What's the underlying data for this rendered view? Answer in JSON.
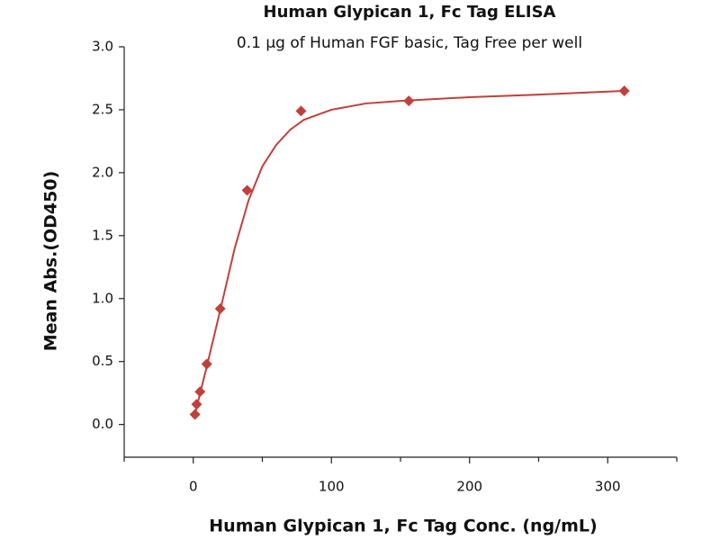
{
  "chart_data": {
    "type": "scatter",
    "title": "Human Glypican 1, Fc Tag ELISA",
    "subtitle": "0.1 μg of Human FGF basic, Tag Free per well",
    "x_label": "Human Glypican 1, Fc Tag Conc. (ng/mL)",
    "y_label": "Mean Abs.(OD450)",
    "x": [
      1.22,
      2.44,
      4.88,
      9.77,
      19.5,
      39,
      78,
      156,
      312
    ],
    "values": [
      0.08,
      0.16,
      0.26,
      0.48,
      0.92,
      1.86,
      2.49,
      2.57,
      2.65
    ],
    "color": "#c0403a",
    "curve": {
      "x": [
        1.22,
        5,
        10,
        20,
        30,
        40,
        50,
        60,
        70,
        80,
        100,
        125,
        150,
        200,
        250,
        312
      ],
      "values": [
        0.08,
        0.25,
        0.47,
        0.93,
        1.4,
        1.78,
        2.05,
        2.22,
        2.34,
        2.42,
        2.5,
        2.55,
        2.57,
        2.6,
        2.62,
        2.65
      ]
    },
    "xlim": [
      -50,
      350
    ],
    "ylim": [
      -0.26,
      3.0
    ],
    "xticks": [
      0,
      100,
      200,
      300
    ],
    "xminorticks": [
      -50,
      50,
      150,
      250,
      350
    ],
    "yticks": [
      {
        "value": 0,
        "label": "0.0"
      },
      {
        "value": 0.5,
        "label": "0.5"
      },
      {
        "value": 1,
        "label": "1.0"
      },
      {
        "value": 1.5,
        "label": "1.5"
      },
      {
        "value": 2,
        "label": "2.0"
      },
      {
        "value": 2.5,
        "label": "2.5"
      },
      {
        "value": 3,
        "label": "3.0"
      }
    ]
  }
}
